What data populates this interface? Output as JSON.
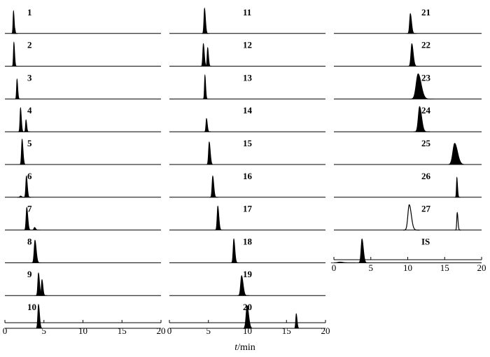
{
  "chart_data": {
    "type": "line",
    "xlabel_var": "t",
    "xlabel_unit": "/min",
    "xlim": [
      0,
      20
    ],
    "xticks": [
      "0",
      "5",
      "10",
      "15",
      "20"
    ],
    "columns": [
      {
        "traces": [
          {
            "label": "1",
            "peaks": [
              {
                "t": 1.1,
                "h": 0.85,
                "w": 0.07
              },
              {
                "t": 1.25,
                "h": 0.22,
                "w": 0.05
              }
            ]
          },
          {
            "label": "2",
            "peaks": [
              {
                "t": 1.15,
                "h": 0.9,
                "w": 0.07
              }
            ]
          },
          {
            "label": "3",
            "peaks": [
              {
                "t": 1.55,
                "h": 0.75,
                "w": 0.07
              }
            ]
          },
          {
            "label": "4",
            "peaks": [
              {
                "t": 2.0,
                "h": 0.9,
                "w": 0.08
              },
              {
                "t": 2.7,
                "h": 0.45,
                "w": 0.07
              }
            ]
          },
          {
            "label": "5",
            "peaks": [
              {
                "t": 2.2,
                "h": 0.95,
                "w": 0.09
              }
            ]
          },
          {
            "label": "6",
            "peaks": [
              {
                "t": 2.0,
                "h": 0.05,
                "w": 0.1
              },
              {
                "t": 2.75,
                "h": 0.8,
                "w": 0.09
              }
            ]
          },
          {
            "label": "7",
            "peaks": [
              {
                "t": 2.8,
                "h": 0.85,
                "w": 0.1
              },
              {
                "t": 3.8,
                "h": 0.1,
                "w": 0.1
              }
            ]
          },
          {
            "label": "8",
            "peaks": [
              {
                "t": 3.85,
                "h": 0.85,
                "w": 0.12
              }
            ]
          },
          {
            "label": "9",
            "peaks": [
              {
                "t": 4.3,
                "h": 0.85,
                "w": 0.1
              },
              {
                "t": 4.75,
                "h": 0.6,
                "w": 0.09
              }
            ]
          },
          {
            "label": "10",
            "peaks": [
              {
                "t": 4.3,
                "h": 0.9,
                "w": 0.1
              }
            ]
          }
        ]
      },
      {
        "traces": [
          {
            "label": "11",
            "peaks": [
              {
                "t": 4.5,
                "h": 0.95,
                "w": 0.09
              }
            ]
          },
          {
            "label": "12",
            "peaks": [
              {
                "t": 4.35,
                "h": 0.85,
                "w": 0.09
              },
              {
                "t": 4.9,
                "h": 0.7,
                "w": 0.08
              }
            ]
          },
          {
            "label": "13",
            "peaks": [
              {
                "t": 4.55,
                "h": 0.9,
                "w": 0.07
              }
            ]
          },
          {
            "label": "14",
            "peaks": [
              {
                "t": 4.75,
                "h": 0.5,
                "w": 0.08
              }
            ]
          },
          {
            "label": "15",
            "peaks": [
              {
                "t": 5.1,
                "h": 0.85,
                "w": 0.1
              }
            ]
          },
          {
            "label": "16",
            "peaks": [
              {
                "t": 5.55,
                "h": 0.8,
                "w": 0.1
              }
            ]
          },
          {
            "label": "17",
            "peaks": [
              {
                "t": 6.2,
                "h": 0.9,
                "w": 0.1
              }
            ]
          },
          {
            "label": "18",
            "peaks": [
              {
                "t": 8.25,
                "h": 0.9,
                "w": 0.1
              }
            ]
          },
          {
            "label": "19",
            "peaks": [
              {
                "t": 9.25,
                "h": 0.75,
                "w": 0.14
              }
            ]
          },
          {
            "label": "20",
            "peaks": [
              {
                "t": 9.95,
                "h": 0.85,
                "w": 0.15
              },
              {
                "t": 16.25,
                "h": 0.55,
                "w": 0.08
              }
            ]
          }
        ]
      },
      {
        "traces": [
          {
            "label": "21",
            "peaks": [
              {
                "t": 10.35,
                "h": 0.75,
                "w": 0.12
              }
            ]
          },
          {
            "label": "22",
            "peaks": [
              {
                "t": 10.55,
                "h": 0.85,
                "w": 0.14
              }
            ]
          },
          {
            "label": "23",
            "peaks": [
              {
                "t": 11.4,
                "h": 0.95,
                "w": 0.3
              }
            ]
          },
          {
            "label": "24",
            "peaks": [
              {
                "t": 11.6,
                "h": 0.95,
                "w": 0.2
              }
            ]
          },
          {
            "label": "25",
            "peaks": [
              {
                "t": 16.35,
                "h": 0.8,
                "w": 0.28
              }
            ]
          },
          {
            "label": "26",
            "peaks": [
              {
                "t": 16.65,
                "h": 0.75,
                "w": 0.07
              }
            ]
          },
          {
            "label": "27",
            "filled": false,
            "peaks": [
              {
                "t": 10.2,
                "h": 0.95,
                "w": 0.2
              },
              {
                "t": 16.7,
                "h": 0.65,
                "w": 0.07
              }
            ]
          },
          {
            "label": "IS",
            "peaks": [
              {
                "t": 3.8,
                "h": 0.9,
                "w": 0.14
              },
              {
                "t": 0.8,
                "h": 0.03,
                "w": 0.3
              }
            ]
          }
        ]
      }
    ]
  }
}
